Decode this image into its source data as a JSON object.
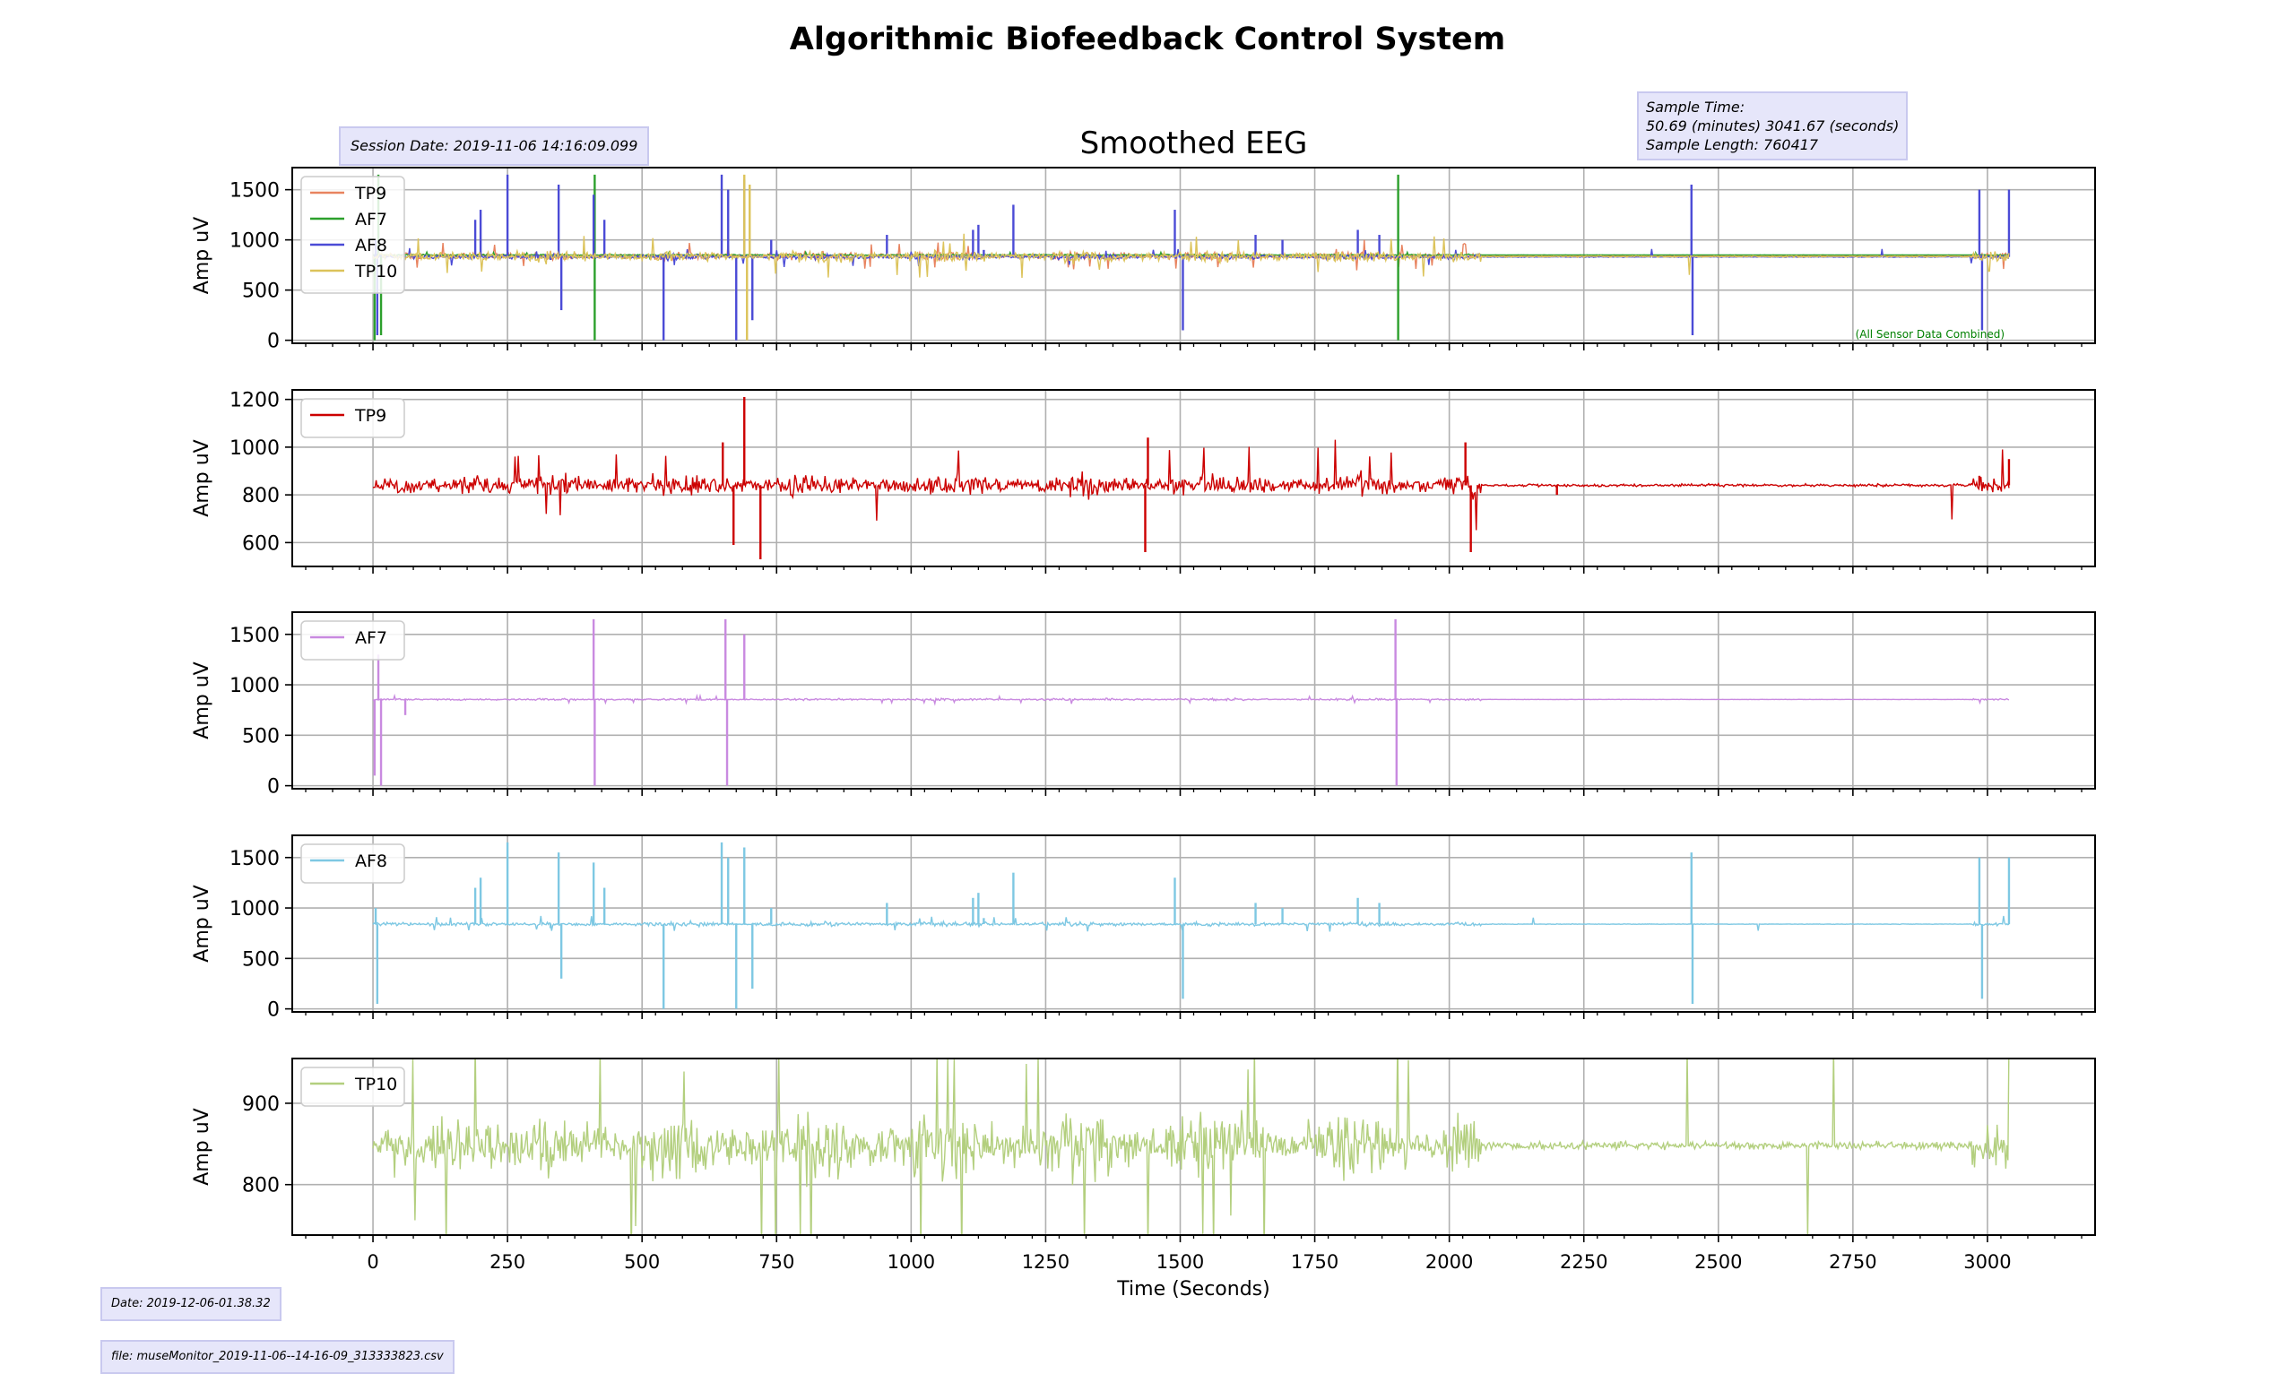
{
  "figure": {
    "title": "Algorithmic Biofeedback Control System",
    "session_date": "Session Date: 2019-11-06 14:16:09.099",
    "sample_time_label": "Sample Time:",
    "sample_time_values": "50.69 (minutes) 3041.67 (seconds)",
    "sample_length": "Sample Length: 760417",
    "footer_date": "Date: 2019-12-06-01.38.32",
    "footer_file": "file: museMonitor_2019-11-06--14-16-09_313333823.csv"
  },
  "colors": {
    "combined_TP9": "#e8835f",
    "combined_AF7": "#2ca02c",
    "combined_AF8": "#4b4bd6",
    "combined_TP10": "#dcc35a",
    "TP9": "#cc0000",
    "AF7": "#c98ae0",
    "AF8": "#7ec8e3",
    "TP10": "#b3cf7e",
    "grid": "#b0b0b0",
    "combined_note": "#008000"
  },
  "chart_data": [
    {
      "type": "line",
      "title": "Smoothed EEG",
      "xlabel": "",
      "ylabel": "Amp uV",
      "xlim": [
        -150,
        3200
      ],
      "ylim": [
        -30,
        1720
      ],
      "yticks": [
        0,
        500,
        1000,
        1500
      ],
      "xticks": [
        0,
        250,
        500,
        750,
        1000,
        1250,
        1500,
        1750,
        2000,
        2250,
        2500,
        2750,
        3000
      ],
      "grid": true,
      "legend": "top-left",
      "annotation": "(All Sensor Data Combined)",
      "series": [
        {
          "name": "TP9",
          "color_key": "combined_TP9",
          "baseline": 840,
          "noise": 45,
          "spikes": []
        },
        {
          "name": "AF7",
          "color_key": "combined_AF7",
          "baseline": 850,
          "noise": 10,
          "spikes": [
            [
              3,
              0
            ],
            [
              10,
              1650
            ],
            [
              15,
              50
            ],
            [
              412,
              1650
            ],
            [
              412,
              0
            ],
            [
              1905,
              1650
            ],
            [
              1905,
              0
            ]
          ]
        },
        {
          "name": "AF8",
          "color_key": "combined_AF8",
          "baseline": 830,
          "noise": 30,
          "spikes": [
            [
              5,
              1000
            ],
            [
              8,
              50
            ],
            [
              190,
              1200
            ],
            [
              200,
              1300
            ],
            [
              250,
              1650
            ],
            [
              330,
              800
            ],
            [
              345,
              1550
            ],
            [
              350,
              300
            ],
            [
              410,
              1450
            ],
            [
              430,
              1200
            ],
            [
              540,
              0
            ],
            [
              648,
              1650
            ],
            [
              660,
              1500
            ],
            [
              675,
              0
            ],
            [
              690,
              1600
            ],
            [
              705,
              200
            ],
            [
              740,
              1000
            ],
            [
              955,
              1050
            ],
            [
              1115,
              1100
            ],
            [
              1125,
              1150
            ],
            [
              1135,
              900
            ],
            [
              1190,
              1350
            ],
            [
              1490,
              1300
            ],
            [
              1505,
              100
            ],
            [
              1640,
              1050
            ],
            [
              1690,
              1000
            ],
            [
              1830,
              1100
            ],
            [
              1870,
              1050
            ],
            [
              2450,
              1550
            ],
            [
              2452,
              50
            ],
            [
              2985,
              1500
            ],
            [
              2990,
              100
            ],
            [
              3040,
              1500
            ]
          ]
        },
        {
          "name": "TP10",
          "color_key": "combined_TP10",
          "baseline": 835,
          "noise": 70,
          "spikes": [
            [
              690,
              1650
            ],
            [
              695,
              0
            ],
            [
              700,
              1550
            ]
          ]
        }
      ]
    },
    {
      "type": "line",
      "title": "",
      "xlabel": "",
      "ylabel": "Amp uV",
      "xlim": [
        -150,
        3200
      ],
      "ylim": [
        500,
        1240
      ],
      "yticks": [
        600,
        800,
        1000,
        1200
      ],
      "xticks": [
        0,
        250,
        500,
        750,
        1000,
        1250,
        1500,
        1750,
        2000,
        2250,
        2500,
        2750,
        3000
      ],
      "grid": true,
      "legend": "top-left",
      "series": [
        {
          "name": "TP9",
          "color_key": "TP9",
          "baseline": 840,
          "noise": 55,
          "spikes": [
            [
              650,
              1020
            ],
            [
              690,
              1210
            ],
            [
              720,
              530
            ],
            [
              670,
              590
            ],
            [
              1435,
              560
            ],
            [
              1440,
              1040
            ],
            [
              2030,
              1020
            ],
            [
              2040,
              560
            ],
            [
              2200,
              800
            ],
            [
              2985,
              880
            ],
            [
              3040,
              950
            ]
          ]
        }
      ]
    },
    {
      "type": "line",
      "title": "",
      "xlabel": "",
      "ylabel": "Amp uV",
      "xlim": [
        -150,
        3200
      ],
      "ylim": [
        -30,
        1720
      ],
      "yticks": [
        0,
        500,
        1000,
        1500
      ],
      "xticks": [
        0,
        250,
        500,
        750,
        1000,
        1250,
        1500,
        1750,
        2000,
        2250,
        2500,
        2750,
        3000
      ],
      "grid": true,
      "legend": "top-left",
      "series": [
        {
          "name": "AF7",
          "color_key": "AF7",
          "baseline": 855,
          "noise": 12,
          "spikes": [
            [
              3,
              100
            ],
            [
              10,
              1300
            ],
            [
              15,
              0
            ],
            [
              60,
              700
            ],
            [
              410,
              1650
            ],
            [
              412,
              0
            ],
            [
              655,
              1650
            ],
            [
              658,
              0
            ],
            [
              690,
              1500
            ],
            [
              1900,
              1650
            ],
            [
              1902,
              0
            ]
          ]
        }
      ]
    },
    {
      "type": "line",
      "title": "",
      "xlabel": "",
      "ylabel": "Amp uV",
      "xlim": [
        -150,
        3200
      ],
      "ylim": [
        -30,
        1720
      ],
      "yticks": [
        0,
        500,
        1000,
        1500
      ],
      "xticks": [
        0,
        250,
        500,
        750,
        1000,
        1250,
        1500,
        1750,
        2000,
        2250,
        2500,
        2750,
        3000
      ],
      "grid": true,
      "legend": "top-left",
      "series": [
        {
          "name": "AF8",
          "color_key": "AF8",
          "baseline": 840,
          "noise": 25,
          "spikes": [
            [
              5,
              1000
            ],
            [
              8,
              50
            ],
            [
              190,
              1200
            ],
            [
              200,
              1300
            ],
            [
              250,
              1650
            ],
            [
              330,
              800
            ],
            [
              345,
              1550
            ],
            [
              350,
              300
            ],
            [
              410,
              1450
            ],
            [
              430,
              1200
            ],
            [
              540,
              0
            ],
            [
              648,
              1650
            ],
            [
              660,
              1500
            ],
            [
              675,
              0
            ],
            [
              690,
              1600
            ],
            [
              705,
              200
            ],
            [
              740,
              1000
            ],
            [
              955,
              1050
            ],
            [
              1115,
              1100
            ],
            [
              1125,
              1150
            ],
            [
              1135,
              900
            ],
            [
              1190,
              1350
            ],
            [
              1490,
              1300
            ],
            [
              1505,
              100
            ],
            [
              1640,
              1050
            ],
            [
              1690,
              1000
            ],
            [
              1830,
              1100
            ],
            [
              1870,
              1050
            ],
            [
              2450,
              1550
            ],
            [
              2452,
              50
            ],
            [
              2985,
              1500
            ],
            [
              2990,
              100
            ],
            [
              3040,
              1500
            ]
          ]
        }
      ]
    },
    {
      "type": "line",
      "title": "",
      "xlabel": "Time (Seconds)",
      "ylabel": "Amp uV",
      "xlim": [
        -150,
        3200
      ],
      "ylim": [
        738,
        955
      ],
      "yticks": [
        800,
        900
      ],
      "xticks": [
        0,
        250,
        500,
        750,
        1000,
        1250,
        1500,
        1750,
        2000,
        2250,
        2500,
        2750,
        3000
      ],
      "grid": true,
      "legend": "top-left",
      "series": [
        {
          "name": "TP10",
          "color_key": "TP10",
          "baseline": 848,
          "noise": 45,
          "spikes": []
        }
      ]
    }
  ]
}
